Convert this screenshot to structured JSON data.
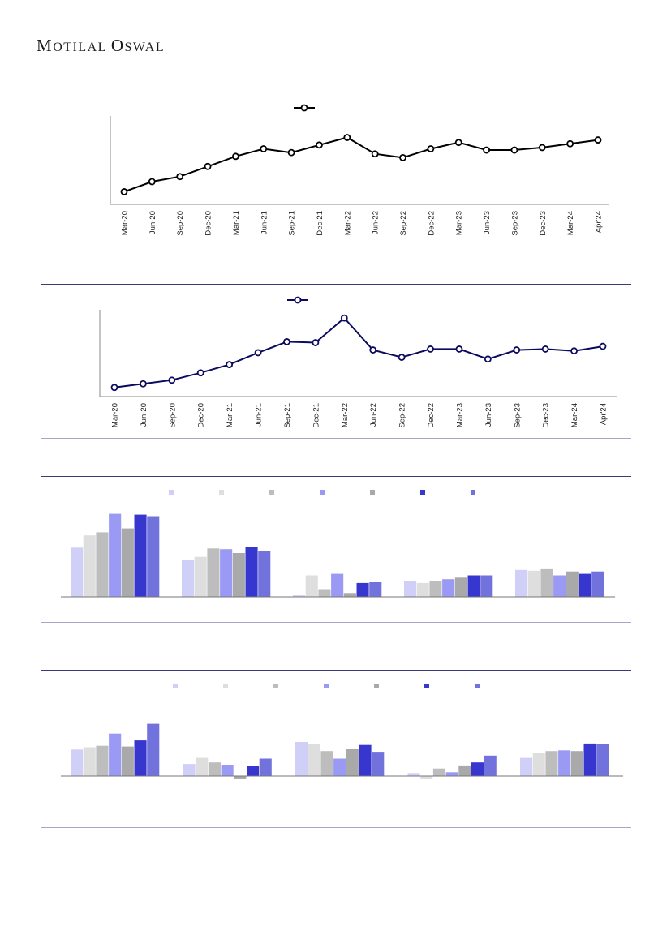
{
  "header": {
    "brand_first": "Motilal",
    "brand_second": "Oswal"
  },
  "colors": {
    "series_a": "#000000",
    "series_b": "#0a0a5e",
    "bars": [
      "#cfcff8",
      "#dedede",
      "#bdbdbd",
      "#9a9af5",
      "#a9a9a9",
      "#3737d0",
      "#7272dd"
    ]
  },
  "chart_data": [
    {
      "type": "line",
      "title": "",
      "legend": [
        ""
      ],
      "x": [
        "Mar-20",
        "Jun-20",
        "Sep-20",
        "Dec-20",
        "Mar-21",
        "Jun-21",
        "Sep-21",
        "Dec-21",
        "Mar-22",
        "Jun-22",
        "Sep-22",
        "Dec-22",
        "Mar-23",
        "Jun-23",
        "Sep-23",
        "Dec-23",
        "Mar-24",
        "Apr'24"
      ],
      "series": [
        {
          "values": [
            10,
            18,
            22,
            30,
            38,
            44,
            41,
            47,
            53,
            40,
            37,
            44,
            49,
            43,
            43,
            45,
            48,
            51
          ]
        }
      ],
      "ylim": [
        0,
        70
      ],
      "grid": false
    },
    {
      "type": "line",
      "title": "",
      "legend": [
        ""
      ],
      "x": [
        "Mar-20",
        "Jun-20",
        "Sep-20",
        "Dec-20",
        "Mar-21",
        "Jun-21",
        "Sep-21",
        "Dec-21",
        "Mar-22",
        "Jun-22",
        "Sep-22",
        "Dec-22",
        "Mar-23",
        "Jun-23",
        "Sep-23",
        "Dec-23",
        "Mar-24",
        "Apr'24"
      ],
      "series": [
        {
          "values": [
            10,
            14,
            18,
            26,
            35,
            48,
            60,
            59,
            86,
            51,
            43,
            52,
            52,
            41,
            51,
            52,
            50,
            55
          ]
        }
      ],
      "ylim": [
        0,
        95
      ],
      "grid": false
    },
    {
      "type": "bar",
      "title": "",
      "categories": [
        "",
        "",
        "",
        "",
        ""
      ],
      "series": [
        {
          "name": "",
          "values": [
            64,
            48,
            2,
            21,
            35
          ]
        },
        {
          "name": "",
          "values": [
            80,
            52,
            28,
            18,
            34
          ]
        },
        {
          "name": "",
          "values": [
            84,
            63,
            10,
            20,
            36
          ]
        },
        {
          "name": "",
          "values": [
            108,
            62,
            30,
            23,
            28
          ]
        },
        {
          "name": "",
          "values": [
            89,
            57,
            5,
            25,
            33
          ]
        },
        {
          "name": "",
          "values": [
            107,
            65,
            18,
            28,
            30
          ]
        },
        {
          "name": "",
          "values": [
            105,
            60,
            19,
            28,
            33
          ]
        }
      ],
      "ylim": [
        0,
        115
      ],
      "grid": false
    },
    {
      "type": "bar",
      "title": "",
      "categories": [
        "",
        "",
        "",
        "",
        ""
      ],
      "series": [
        {
          "name": "",
          "values": [
            35,
            16,
            45,
            4,
            24
          ]
        },
        {
          "name": "",
          "values": [
            38,
            24,
            42,
            -4,
            30
          ]
        },
        {
          "name": "",
          "values": [
            40,
            18,
            33,
            10,
            33
          ]
        },
        {
          "name": "",
          "values": [
            56,
            15,
            23,
            5,
            34
          ]
        },
        {
          "name": "",
          "values": [
            39,
            -4,
            36,
            14,
            33
          ]
        },
        {
          "name": "",
          "values": [
            47,
            13,
            41,
            18,
            43
          ]
        },
        {
          "name": "",
          "values": [
            69,
            23,
            32,
            27,
            42
          ]
        }
      ],
      "ylim": [
        -10,
        75
      ],
      "grid": false
    }
  ]
}
